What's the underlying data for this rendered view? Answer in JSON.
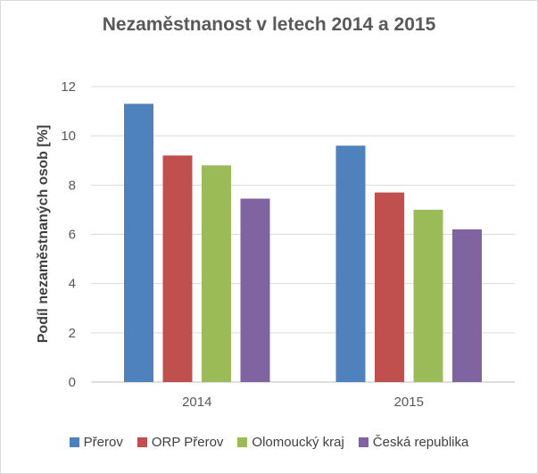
{
  "chart_data": {
    "type": "bar",
    "title": "Nezaměstnanost v letech 2014 a 2015",
    "ylabel": "Podíl nezaměstnaných osob [%]",
    "xlabel": "",
    "categories": [
      "2014",
      "2015"
    ],
    "ylim": [
      0,
      12
    ],
    "yticks": [
      0,
      2,
      4,
      6,
      8,
      10,
      12
    ],
    "grid": true,
    "legend_position": "bottom",
    "series": [
      {
        "name": "Přerov",
        "values": [
          11.3,
          9.6
        ],
        "color": "#4f81bd"
      },
      {
        "name": "ORP Přerov",
        "values": [
          9.2,
          7.7
        ],
        "color": "#c0504d"
      },
      {
        "name": "Olomoucký kraj",
        "values": [
          8.8,
          7.0
        ],
        "color": "#9bbb59"
      },
      {
        "name": "Česká republika",
        "values": [
          7.45,
          6.2
        ],
        "color": "#8064a2"
      }
    ]
  }
}
